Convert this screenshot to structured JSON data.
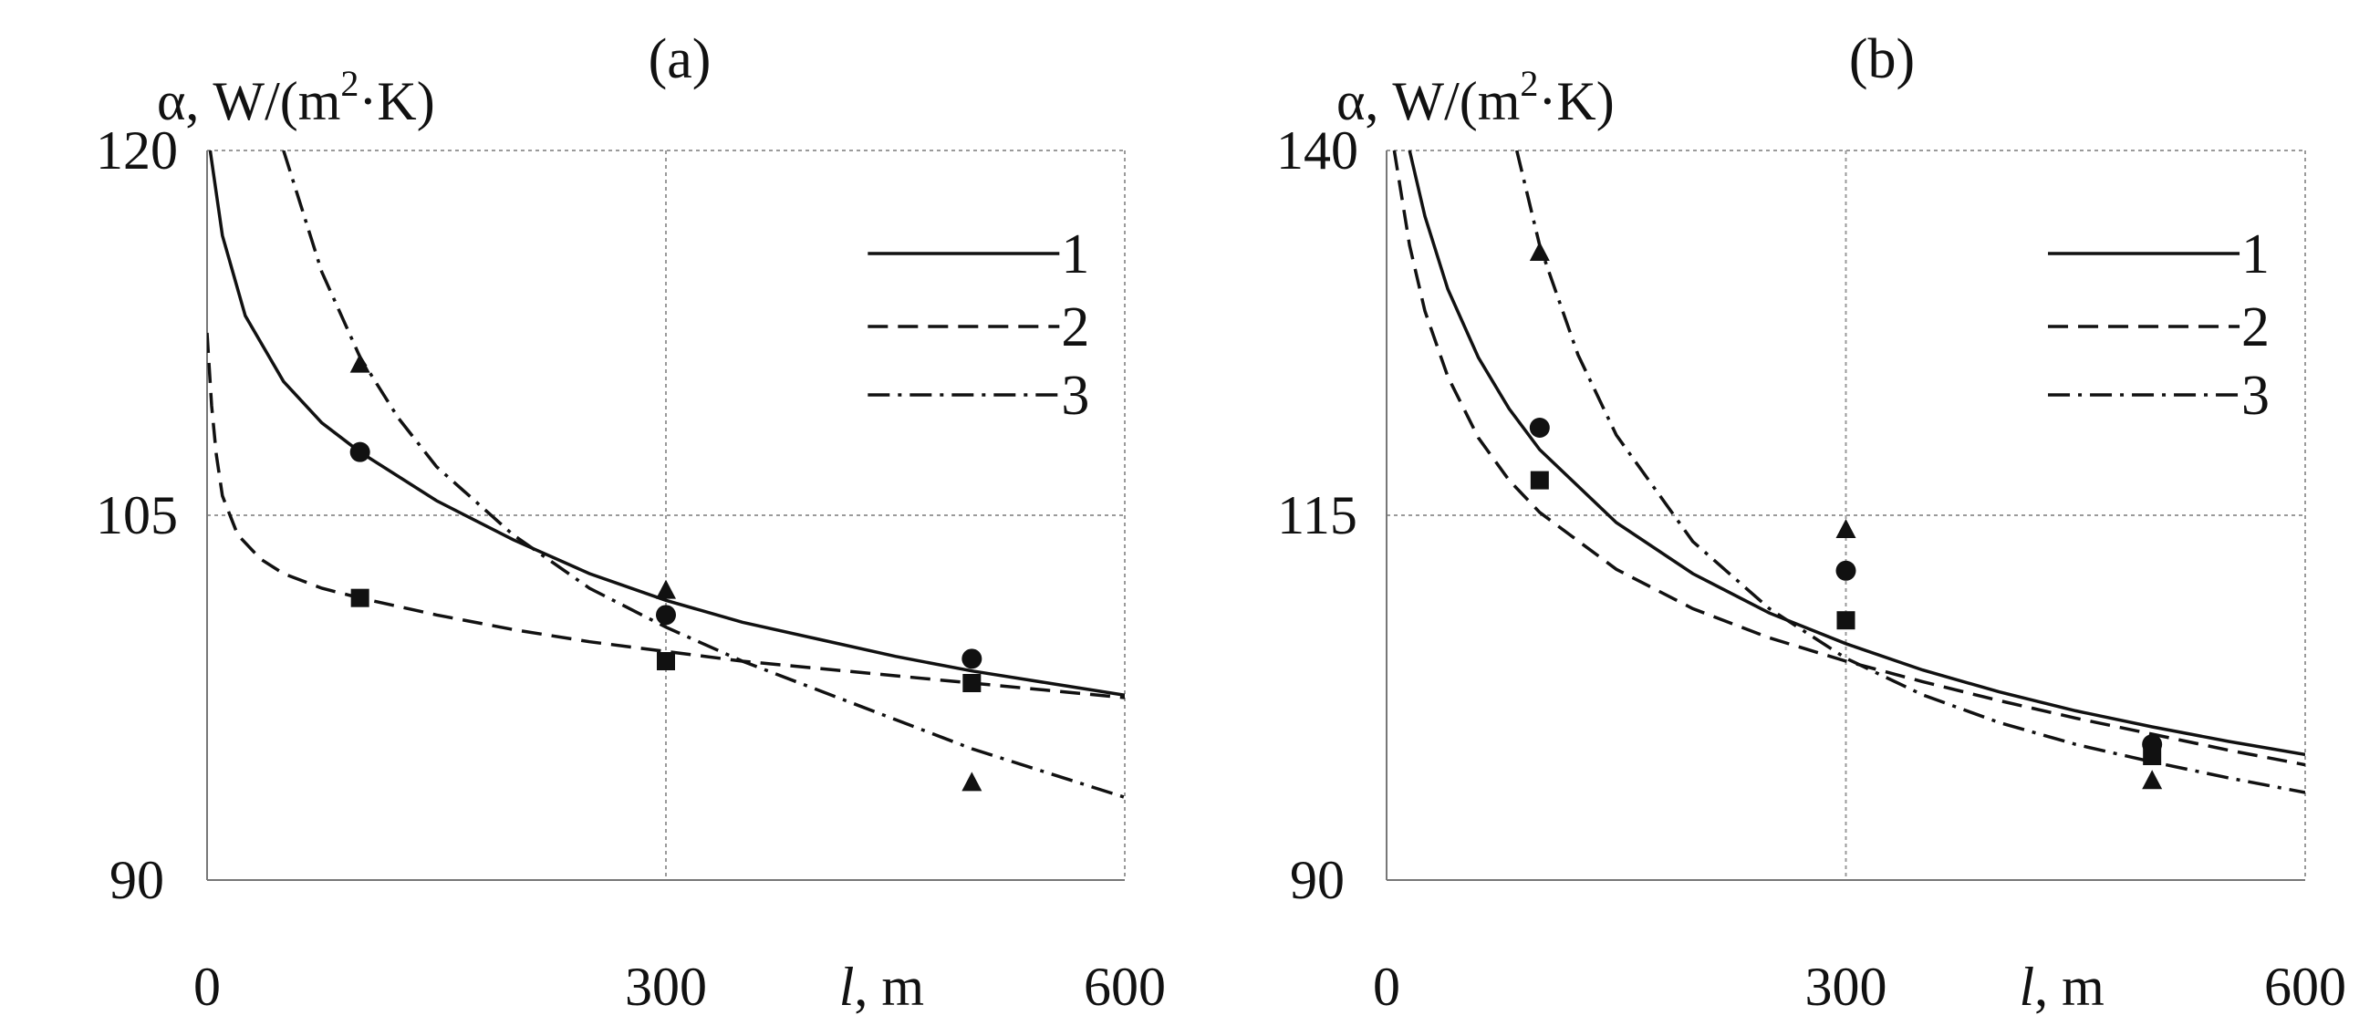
{
  "chart_data": [
    {
      "type": "line",
      "panel_label": "(a)",
      "ylabel_prefix": "α, W/(m",
      "ylabel_exp": "2",
      "ylabel_suffix": "·K)",
      "xlabel_var": "l",
      "xlabel_unit": ", m",
      "xlim": [
        0,
        600
      ],
      "ylim": [
        90,
        120
      ],
      "xticks": [
        0,
        300,
        600
      ],
      "yticks": [
        90,
        105,
        120
      ],
      "xtick_labels": [
        "0",
        "300",
        "600"
      ],
      "ytick_labels": [
        "90",
        "105",
        "120"
      ],
      "grid": true,
      "legend_position": "top-right",
      "series": [
        {
          "name": "1",
          "style": "solid",
          "marker": "circle",
          "x": [
            2,
            10,
            25,
            50,
            75,
            100,
            150,
            200,
            250,
            300,
            350,
            400,
            450,
            500,
            550,
            600
          ],
          "y": [
            120,
            116.5,
            113.2,
            110.5,
            108.8,
            107.6,
            105.6,
            104.0,
            102.6,
            101.5,
            100.6,
            99.9,
            99.2,
            98.6,
            98.1,
            97.6
          ],
          "points_x": [
            100,
            300,
            500
          ],
          "points_y": [
            107.6,
            100.9,
            99.1
          ]
        },
        {
          "name": "2",
          "style": "dashed",
          "marker": "square",
          "x": [
            0,
            3,
            6,
            10,
            20,
            35,
            50,
            75,
            100,
            150,
            200,
            250,
            300,
            350,
            400,
            450,
            500,
            550,
            600
          ],
          "y": [
            112.5,
            109.5,
            107.5,
            105.8,
            104.2,
            103.2,
            102.6,
            102.0,
            101.6,
            100.9,
            100.3,
            99.8,
            99.4,
            99.0,
            98.7,
            98.4,
            98.1,
            97.8,
            97.5
          ],
          "points_x": [
            100,
            300,
            500
          ],
          "points_y": [
            101.6,
            99.0,
            98.1
          ]
        },
        {
          "name": "3",
          "style": "dashdot",
          "marker": "triangle",
          "x": [
            50,
            75,
            100,
            125,
            150,
            200,
            250,
            300,
            350,
            400,
            450,
            500,
            550,
            600
          ],
          "y": [
            120.0,
            115.0,
            111.5,
            109.0,
            107.0,
            104.2,
            102.0,
            100.4,
            99.0,
            97.8,
            96.6,
            95.4,
            94.4,
            93.4
          ],
          "points_x": [
            100,
            300,
            500
          ],
          "points_y": [
            111.2,
            101.9,
            94.0
          ]
        }
      ]
    },
    {
      "type": "line",
      "panel_label": "(b)",
      "ylabel_prefix": "α, W/(m",
      "ylabel_exp": "2",
      "ylabel_suffix": "·K)",
      "xlabel_var": "l",
      "xlabel_unit": ", m",
      "xlim": [
        0,
        600
      ],
      "ylim": [
        90,
        140
      ],
      "xticks": [
        0,
        300,
        600
      ],
      "yticks": [
        90,
        115,
        140
      ],
      "xtick_labels": [
        "0",
        "300",
        "600"
      ],
      "ytick_labels": [
        "90",
        "115",
        "140"
      ],
      "grid": true,
      "legend_position": "top-right",
      "series": [
        {
          "name": "1",
          "style": "solid",
          "marker": "circle",
          "x": [
            15,
            25,
            40,
            60,
            80,
            100,
            150,
            200,
            250,
            300,
            350,
            400,
            450,
            500,
            550,
            600
          ],
          "y": [
            140,
            135.5,
            130.5,
            125.8,
            122.3,
            119.5,
            114.5,
            111.0,
            108.3,
            106.2,
            104.4,
            102.9,
            101.6,
            100.5,
            99.5,
            98.6
          ],
          "points_x": [
            100,
            300,
            500
          ],
          "points_y": [
            121.0,
            111.2,
            99.3
          ]
        },
        {
          "name": "2",
          "style": "dashed",
          "marker": "square",
          "x": [
            5,
            15,
            25,
            40,
            60,
            80,
            100,
            150,
            200,
            250,
            300,
            350,
            400,
            450,
            500,
            550,
            600
          ],
          "y": [
            140,
            133.5,
            129.0,
            124.5,
            120.3,
            117.4,
            115.2,
            111.3,
            108.6,
            106.6,
            105.0,
            103.6,
            102.3,
            101.1,
            100.0,
            98.9,
            97.9
          ],
          "points_x": [
            100,
            300,
            500
          ],
          "points_y": [
            117.4,
            107.8,
            98.5
          ]
        },
        {
          "name": "3",
          "style": "dashdot",
          "marker": "triangle",
          "x": [
            85,
            100,
            125,
            150,
            200,
            250,
            300,
            350,
            400,
            450,
            500,
            550,
            600
          ],
          "y": [
            140,
            133.5,
            126.0,
            120.5,
            113.2,
            108.6,
            105.2,
            102.7,
            100.8,
            99.3,
            98.1,
            97.0,
            96.0
          ],
          "points_x": [
            100,
            300,
            500
          ],
          "points_y": [
            133.0,
            114.0,
            96.8
          ]
        }
      ]
    }
  ]
}
